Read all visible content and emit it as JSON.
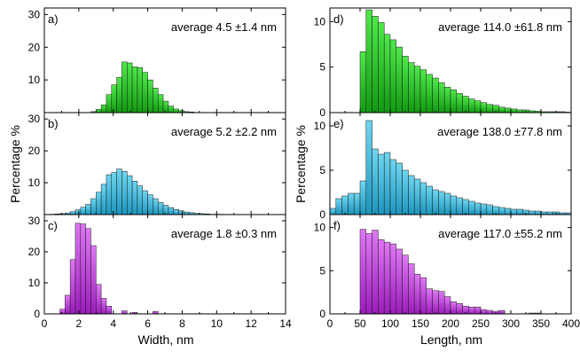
{
  "axes": {
    "left_ylabel": "Percentage %",
    "right_ylabel": "Percentage %",
    "left_xlabel": "Width, nm",
    "right_xlabel": "Length, nm"
  },
  "colors": {
    "green": "#4fe84a",
    "green_dark": "#129a12",
    "blue": "#6fd6f0",
    "blue_dark": "#1d95bd",
    "purple": "#de78f4",
    "purple_dark": "#9b1cbb"
  },
  "chart_data": [
    {
      "type": "bar",
      "panel": "a)",
      "annotation": "average  4.5  ±1.4 nm",
      "color": "green",
      "bin_start": 0.3,
      "bin_width": 0.3,
      "xlim": [
        0,
        14
      ],
      "ylim": [
        0,
        32
      ],
      "xticks": [
        0,
        2,
        4,
        6,
        8,
        10,
        12,
        14
      ],
      "yticks": [
        10,
        20,
        30
      ],
      "values": [
        0,
        0,
        0,
        0,
        0,
        0,
        0,
        0,
        0.3,
        1.0,
        2.4,
        5.5,
        8.5,
        10.8,
        15.5,
        15.2,
        14.0,
        13.8,
        12.3,
        10.0,
        7.5,
        5.5,
        3.5,
        2.0,
        1.1,
        0.6,
        0.3,
        0.2
      ]
    },
    {
      "type": "bar",
      "panel": "b)",
      "annotation": "average  5.2  ±2.2 nm",
      "color": "blue",
      "bin_start": 0.3,
      "bin_width": 0.3,
      "xlim": [
        0,
        14
      ],
      "ylim": [
        0,
        32
      ],
      "xticks": [
        0,
        2,
        4,
        6,
        8,
        10,
        12,
        14
      ],
      "yticks": [
        10,
        20,
        30
      ],
      "values": [
        0.1,
        0.2,
        0.3,
        0.5,
        0.9,
        1.5,
        2.3,
        3.2,
        5.0,
        7.0,
        9.5,
        12.5,
        13.2,
        14.3,
        13.6,
        12.2,
        10.5,
        9.0,
        7.5,
        6.2,
        5.0,
        3.8,
        2.9,
        2.2,
        1.6,
        1.2,
        0.8,
        0.6,
        0.4,
        0.3,
        0.2,
        0.1,
        0.1,
        0.1
      ]
    },
    {
      "type": "bar",
      "panel": "c)",
      "annotation": "average  1.8  ±0.3 nm",
      "color": "purple",
      "bin_start": 0.3,
      "bin_width": 0.3,
      "xlim": [
        0,
        14
      ],
      "ylim": [
        0,
        32
      ],
      "xticks": [
        0,
        2,
        4,
        6,
        8,
        10,
        12,
        14
      ],
      "yticks": [
        0,
        10,
        20,
        30
      ],
      "values": [
        0,
        0,
        1.5,
        6.0,
        17.5,
        29.2,
        29.0,
        27.5,
        22.0,
        9.5,
        5.0,
        2.5,
        0,
        0,
        1.0,
        0,
        0.5,
        0,
        0,
        0,
        0.8
      ]
    },
    {
      "type": "bar",
      "panel": "d)",
      "annotation": "average  114.0  ±61.8 nm",
      "color": "green",
      "bin_start": 50,
      "bin_width": 10,
      "xlim": [
        0,
        400
      ],
      "ylim": [
        0,
        11.5
      ],
      "xticks": [
        0,
        50,
        100,
        150,
        200,
        250,
        300,
        350,
        400
      ],
      "yticks": [
        0,
        5,
        10
      ],
      "values": [
        6.7,
        11.3,
        10.6,
        9.9,
        8.6,
        8.0,
        7.2,
        6.2,
        5.5,
        5.1,
        4.7,
        4.2,
        3.8,
        3.3,
        2.8,
        2.5,
        2.1,
        1.8,
        1.5,
        1.3,
        1.1,
        0.9,
        0.8,
        0.6,
        0.5,
        0.4,
        0.3,
        0.3,
        0.2,
        0.15,
        0.1,
        0.1,
        0.1,
        0.1,
        0.05
      ]
    },
    {
      "type": "bar",
      "panel": "e)",
      "annotation": "average  138.0  ±77.8 nm",
      "color": "blue",
      "bin_start": 0,
      "bin_width": 10,
      "xlim": [
        0,
        400
      ],
      "ylim": [
        0,
        11.5
      ],
      "xticks": [
        0,
        50,
        100,
        150,
        200,
        250,
        300,
        350,
        400
      ],
      "yticks": [
        0,
        5,
        10
      ],
      "values": [
        0.7,
        1.8,
        2.1,
        2.4,
        2.4,
        3.8,
        10.6,
        7.4,
        6.8,
        7.0,
        6.2,
        5.8,
        5.0,
        4.4,
        4.0,
        3.6,
        3.2,
        2.8,
        2.6,
        2.4,
        2.1,
        1.9,
        1.7,
        1.5,
        1.3,
        1.2,
        1.1,
        0.9,
        0.8,
        0.7,
        0.6,
        0.6,
        0.5,
        0.4,
        0.4,
        0.3,
        0.3,
        0.3,
        0.2,
        0.2
      ]
    },
    {
      "type": "bar",
      "panel": "f)",
      "annotation": "average  117.0  ±55.2 nm",
      "color": "purple",
      "bin_start": 50,
      "bin_width": 10,
      "xlim": [
        0,
        400
      ],
      "ylim": [
        0,
        11.5
      ],
      "xticks": [
        0,
        50,
        100,
        150,
        200,
        250,
        300,
        350,
        400
      ],
      "yticks": [
        0,
        5,
        10
      ],
      "values": [
        9.8,
        9.3,
        9.7,
        8.6,
        8.3,
        8.1,
        7.5,
        6.8,
        5.8,
        4.6,
        4.2,
        2.9,
        2.7,
        2.6,
        2.0,
        1.4,
        1.2,
        0.9,
        0.8,
        0.8,
        0.5,
        0.4,
        0.3,
        0.4,
        0,
        0,
        0,
        0,
        0.1,
        0.1
      ]
    }
  ]
}
